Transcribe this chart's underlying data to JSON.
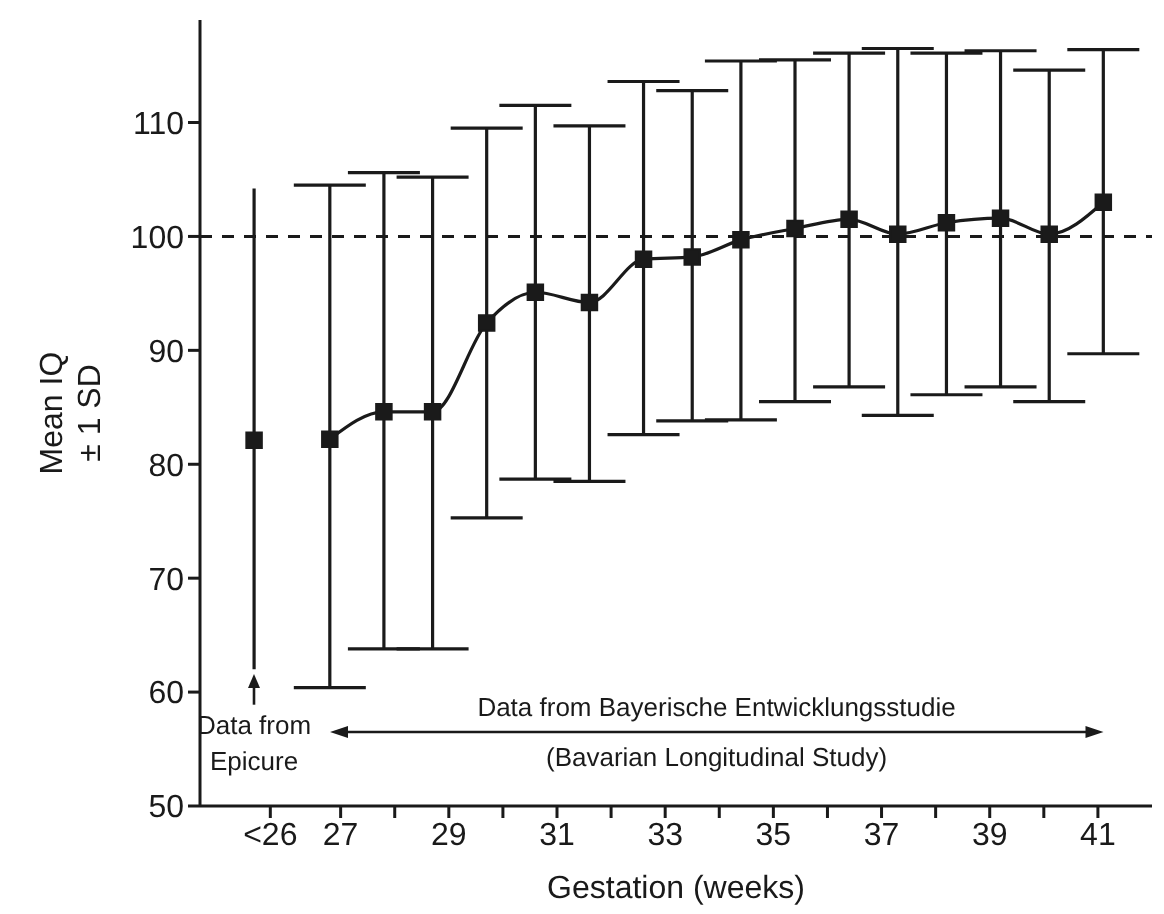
{
  "chart_data": {
    "type": "line",
    "xlabel": "Gestation (weeks)",
    "ylabel": "Mean IQ\n± 1 SD",
    "xlim": [
      24.4,
      42
    ],
    "ylim": [
      50,
      119
    ],
    "xticks": [
      {
        "value": 25.7,
        "label": "<26"
      },
      27,
      {
        "value": 28,
        "label": null
      },
      29,
      {
        "value": 30,
        "label": null
      },
      31,
      {
        "value": 32,
        "label": null
      },
      33,
      {
        "value": 34,
        "label": null
      },
      35,
      {
        "value": 36,
        "label": null
      },
      37,
      {
        "value": 38,
        "label": null
      },
      39,
      {
        "value": 40,
        "label": null
      },
      41
    ],
    "yticks": [
      50,
      60,
      70,
      80,
      90,
      100,
      110
    ],
    "marker": "square",
    "series": [
      {
        "type": "scatter",
        "color": "#1a1a1a",
        "x": [
          25.4
        ],
        "values": [
          82.1
        ],
        "errors": [
          [
            62.0,
            104.2
          ]
        ]
      },
      {
        "color": "#1a1a1a",
        "x": [
          26.8,
          27.8,
          28.7,
          29.7,
          30.6,
          31.6,
          32.6,
          33.5,
          34.4,
          35.4,
          36.4,
          37.3,
          38.2,
          39.2,
          40.1,
          41.1
        ],
        "values": [
          82.2,
          84.6,
          84.6,
          92.4,
          95.1,
          94.2,
          98.0,
          98.2,
          99.7,
          100.7,
          101.5,
          100.2,
          101.2,
          101.6,
          100.2,
          103.0
        ],
        "errors": [
          [
            60.4,
            104.5
          ],
          [
            63.8,
            105.6
          ],
          [
            63.8,
            105.2
          ],
          [
            75.3,
            109.5
          ],
          [
            78.7,
            111.5
          ],
          [
            78.5,
            109.7
          ],
          [
            82.6,
            113.6
          ],
          [
            83.8,
            112.8
          ],
          [
            83.9,
            115.4
          ],
          [
            85.5,
            115.5
          ],
          [
            86.8,
            116.1
          ],
          [
            84.3,
            116.5
          ],
          [
            86.1,
            116.1
          ],
          [
            86.8,
            116.3
          ],
          [
            85.5,
            114.6
          ],
          [
            89.7,
            116.4
          ]
        ]
      }
    ],
    "ref_lines": [
      {
        "axis": "y",
        "value": 100,
        "color": "#1a1a1a",
        "line_style": "dashed"
      }
    ],
    "annotations": [
      "Data from\nEpicure",
      "Data from Bayerische Entwicklungsstudie",
      "(Bavarian Longitudinal Study)"
    ]
  }
}
